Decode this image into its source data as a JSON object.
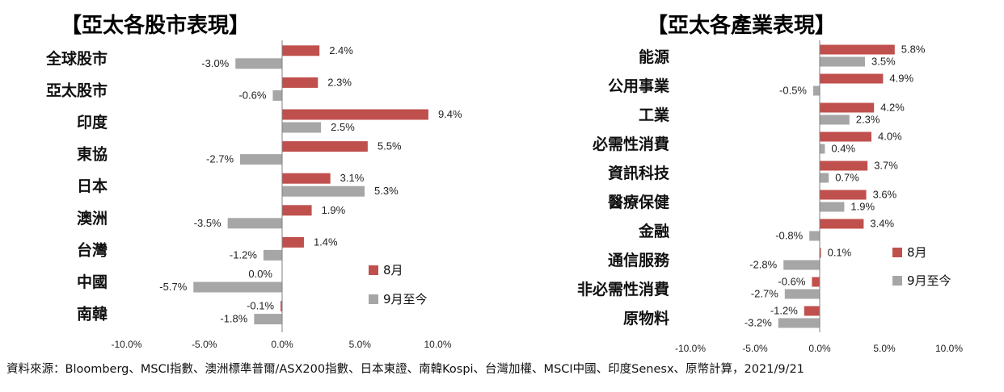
{
  "colors": {
    "s1": "#c0504d",
    "s2": "#a6a6a6",
    "axis": "#7f7f7f"
  },
  "source_text": "資料來源：Bloomberg、MSCI指數、澳洲標準普爾/ASX200指數、日本東證、南韓Kospi、台灣加權、MSCI中國、印度Senesx、原幣計算，2021/9/21",
  "chart_data": [
    {
      "type": "bar",
      "orientation": "horizontal",
      "title": "【亞太各股市表現】",
      "categories": [
        "全球股市",
        "亞太股市",
        "印度",
        "東協",
        "日本",
        "澳洲",
        "台灣",
        "中國",
        "南韓"
      ],
      "series": [
        {
          "name": "8月",
          "values": [
            2.4,
            2.3,
            9.4,
            5.5,
            3.1,
            1.9,
            1.4,
            0.0,
            -0.1
          ]
        },
        {
          "name": "9月至今",
          "values": [
            -3.0,
            -0.6,
            2.5,
            -2.7,
            5.3,
            -3.5,
            -1.2,
            -5.7,
            -1.8
          ]
        }
      ],
      "xlim": [
        -10,
        10
      ],
      "xticks": [
        "-10.0%",
        "-5.0%",
        "0.0%",
        "5.0%",
        "10.0%"
      ],
      "tick_values": [
        -10,
        -5,
        0,
        5,
        10
      ],
      "legend_position": "right"
    },
    {
      "type": "bar",
      "orientation": "horizontal",
      "title": "【亞太各產業表現】",
      "categories": [
        "能源",
        "公用事業",
        "工業",
        "必需性消費",
        "資訊科技",
        "醫療保健",
        "金融",
        "通信服務",
        "非必需性消費",
        "原物料"
      ],
      "series": [
        {
          "name": "8月",
          "values": [
            5.8,
            4.9,
            4.2,
            4.0,
            3.7,
            3.6,
            3.4,
            0.1,
            -0.6,
            -1.2
          ]
        },
        {
          "name": "9月至今",
          "values": [
            3.5,
            -0.5,
            2.3,
            0.4,
            0.7,
            1.9,
            -0.8,
            -2.8,
            -2.7,
            -3.2
          ]
        }
      ],
      "xlim": [
        -10,
        10
      ],
      "xticks": [
        "-10.0%",
        "-5.0%",
        "0.0%",
        "5.0%",
        "10.0%"
      ],
      "tick_values": [
        -10,
        -5,
        0,
        5,
        10
      ],
      "legend_position": "right"
    }
  ]
}
